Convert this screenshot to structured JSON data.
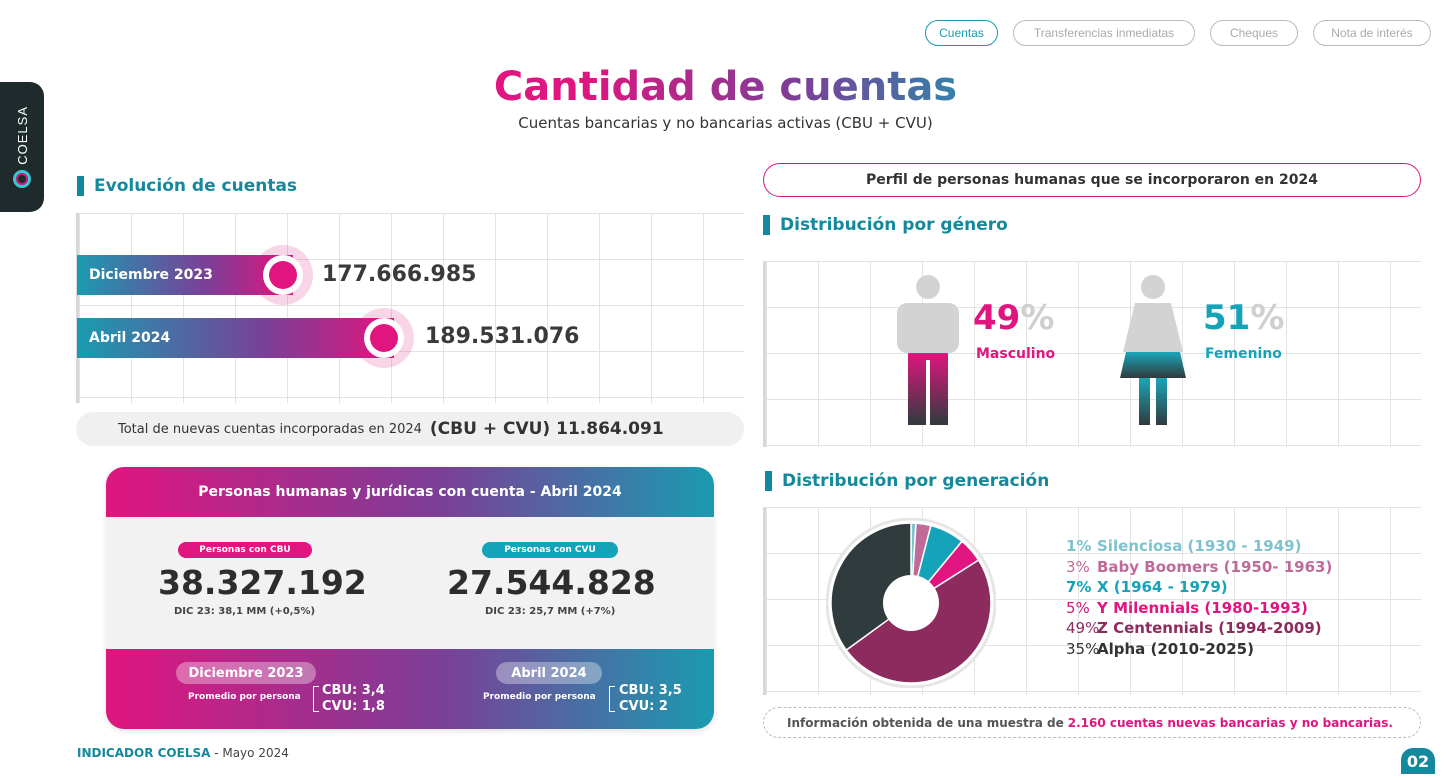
{
  "nav": {
    "tabs": [
      "Cuentas",
      "Transferencias inmediatas",
      "Cheques",
      "Nota de interés"
    ]
  },
  "brand": {
    "side_logo": "COELSA"
  },
  "header": {
    "title": "Cantidad de cuentas",
    "subtitle": "Cuentas bancarias y no bancarias activas (CBU + CVU)"
  },
  "evolucion": {
    "heading": "Evolución de cuentas",
    "rows": [
      {
        "label": "Diciembre 2023",
        "value": "177.666.985"
      },
      {
        "label": "Abril 2024",
        "value": "189.531.076"
      }
    ],
    "total_label": "Total de nuevas cuentas incorporadas en 2024",
    "total_value": "(CBU + CVU) 11.864.091"
  },
  "personas": {
    "title": "Personas humanas y jurídicas con cuenta - Abril 2024",
    "cbu": {
      "tag": "Personas con CBU",
      "value": "38.327.192",
      "note": "DIC 23: 38,1 MM (+0,5%)"
    },
    "cvu": {
      "tag": "Personas con CVU",
      "value": "27.544.828",
      "note": "DIC 23: 25,7 MM (+7%)"
    },
    "dic": {
      "label": "Diciembre 2023",
      "sub": "Promedio por persona",
      "cbu": "CBU: 3,4",
      "cvu": "CVU: 1,8"
    },
    "abr": {
      "label": "Abril 2024",
      "sub": "Promedio por persona",
      "cbu": "CBU: 3,5",
      "cvu": "CVU: 2"
    }
  },
  "perfil": {
    "banner": "Perfil de personas humanas que se incorporaron en 2024",
    "genero_heading": "Distribución por género",
    "masculino": {
      "num": "49",
      "sym": "%",
      "label": "Masculino"
    },
    "femenino": {
      "num": "51",
      "sym": "%",
      "label": "Femenino"
    },
    "generacion_heading": "Distribución por generación"
  },
  "chart_data": {
    "type": "pie",
    "series": [
      {
        "name": "Silenciosa (1930 - 1949)",
        "pct_label": "1%",
        "value": 1,
        "color": "#7fc2cf"
      },
      {
        "name": "Baby Boomers (1950- 1963)",
        "pct_label": "3%",
        "value": 3,
        "color": "#c06a9a"
      },
      {
        "name": "X (1964 - 1979)",
        "pct_label": "7%",
        "value": 7,
        "color": "#14a3b8"
      },
      {
        "name": "Y Milennials (1980-1993)",
        "pct_label": "5%",
        "value": 5,
        "color": "#e0157f"
      },
      {
        "name": "Z Centennials (1994-2009)",
        "pct_label": "49%",
        "value": 49,
        "color": "#8e2b5e"
      },
      {
        "name": "Alpha (2010-2025)",
        "pct_label": "35%",
        "value": 35,
        "color": "#2f3b3d"
      }
    ]
  },
  "note": {
    "pre": "Información obtenida de una muestra de",
    "highlight": "2.160 cuentas nuevas bancarias y no bancarias."
  },
  "footer": {
    "brand": "INDICADOR COELSA",
    "date": " - Mayo 2024",
    "page": "02"
  }
}
